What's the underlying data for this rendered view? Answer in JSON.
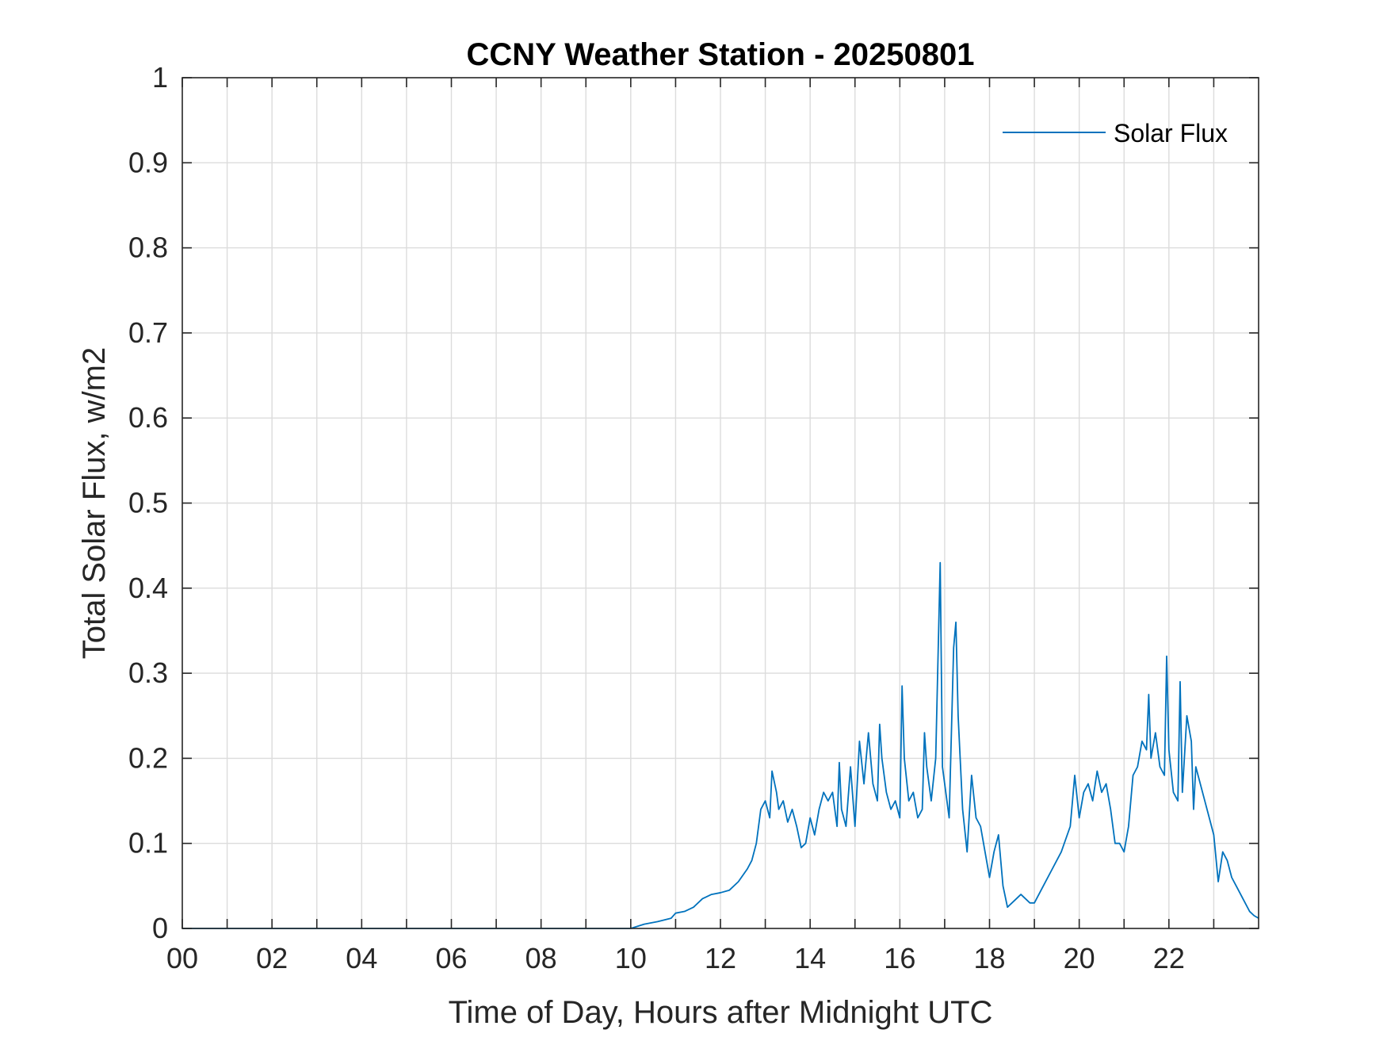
{
  "chart_data": {
    "type": "line",
    "title": "CCNY Weather Station - 20250801",
    "xlabel": "Time of Day, Hours after Midnight UTC",
    "ylabel": "Total Solar Flux, w/m2",
    "xlim": [
      0,
      24
    ],
    "ylim": [
      0,
      1
    ],
    "grid": true,
    "legend_position": "top-right",
    "line_color": "#0072BD",
    "x_ticks": [
      0,
      2,
      4,
      6,
      8,
      10,
      12,
      14,
      16,
      18,
      20,
      22
    ],
    "x_tick_labels": [
      "00",
      "02",
      "04",
      "06",
      "08",
      "10",
      "12",
      "14",
      "16",
      "18",
      "20",
      "22"
    ],
    "x_minor_ticks": [
      1,
      3,
      5,
      7,
      9,
      11,
      13,
      15,
      17,
      19,
      21,
      23
    ],
    "y_ticks": [
      0,
      0.1,
      0.2,
      0.3,
      0.4,
      0.5,
      0.6,
      0.7,
      0.8,
      0.9,
      1
    ],
    "y_tick_labels": [
      "0",
      "0.1",
      "0.2",
      "0.3",
      "0.4",
      "0.5",
      "0.6",
      "0.7",
      "0.8",
      "0.9",
      "1"
    ],
    "series": [
      {
        "name": "Solar Flux",
        "x": [
          0,
          10,
          10.3,
          10.6,
          10.9,
          11.0,
          11.2,
          11.4,
          11.6,
          11.8,
          12.0,
          12.2,
          12.4,
          12.6,
          12.7,
          12.8,
          12.9,
          13.0,
          13.1,
          13.15,
          13.25,
          13.3,
          13.4,
          13.5,
          13.6,
          13.7,
          13.8,
          13.9,
          14.0,
          14.1,
          14.2,
          14.3,
          14.4,
          14.5,
          14.6,
          14.65,
          14.7,
          14.8,
          14.9,
          15.0,
          15.1,
          15.2,
          15.3,
          15.4,
          15.5,
          15.55,
          15.6,
          15.7,
          15.8,
          15.9,
          16.0,
          16.05,
          16.1,
          16.2,
          16.3,
          16.4,
          16.5,
          16.55,
          16.6,
          16.7,
          16.8,
          16.9,
          16.95,
          17.0,
          17.1,
          17.2,
          17.25,
          17.3,
          17.4,
          17.5,
          17.6,
          17.7,
          17.8,
          17.9,
          18.0,
          18.1,
          18.2,
          18.3,
          18.4,
          18.5,
          18.6,
          18.7,
          18.8,
          18.9,
          19.0,
          19.2,
          19.4,
          19.6,
          19.8,
          19.9,
          20.0,
          20.1,
          20.2,
          20.3,
          20.4,
          20.5,
          20.6,
          20.7,
          20.8,
          20.9,
          21.0,
          21.1,
          21.2,
          21.3,
          21.4,
          21.5,
          21.55,
          21.6,
          21.7,
          21.8,
          21.9,
          21.95,
          22.0,
          22.1,
          22.2,
          22.25,
          22.3,
          22.4,
          22.5,
          22.55,
          22.6,
          22.7,
          22.8,
          22.9,
          23.0,
          23.1,
          23.2,
          23.3,
          23.4,
          23.5,
          23.6,
          23.7,
          23.8,
          23.9,
          24.0
        ],
        "values": [
          0,
          0,
          0.005,
          0.008,
          0.012,
          0.018,
          0.02,
          0.025,
          0.035,
          0.04,
          0.042,
          0.045,
          0.055,
          0.07,
          0.08,
          0.1,
          0.14,
          0.15,
          0.13,
          0.185,
          0.16,
          0.14,
          0.15,
          0.125,
          0.14,
          0.12,
          0.095,
          0.1,
          0.13,
          0.11,
          0.14,
          0.16,
          0.15,
          0.16,
          0.12,
          0.195,
          0.14,
          0.12,
          0.19,
          0.12,
          0.22,
          0.17,
          0.23,
          0.17,
          0.15,
          0.24,
          0.2,
          0.16,
          0.14,
          0.15,
          0.13,
          0.285,
          0.2,
          0.15,
          0.16,
          0.13,
          0.14,
          0.23,
          0.19,
          0.15,
          0.2,
          0.43,
          0.19,
          0.17,
          0.13,
          0.33,
          0.36,
          0.25,
          0.14,
          0.09,
          0.18,
          0.13,
          0.12,
          0.09,
          0.06,
          0.09,
          0.11,
          0.05,
          0.025,
          0.03,
          0.035,
          0.04,
          0.035,
          0.03,
          0.03,
          0.05,
          0.07,
          0.09,
          0.12,
          0.18,
          0.13,
          0.16,
          0.17,
          0.15,
          0.185,
          0.16,
          0.17,
          0.14,
          0.1,
          0.1,
          0.09,
          0.12,
          0.18,
          0.19,
          0.22,
          0.21,
          0.275,
          0.2,
          0.23,
          0.19,
          0.18,
          0.32,
          0.21,
          0.16,
          0.15,
          0.29,
          0.16,
          0.25,
          0.22,
          0.14,
          0.19,
          0.17,
          0.15,
          0.13,
          0.11,
          0.055,
          0.09,
          0.08,
          0.06,
          0.05,
          0.04,
          0.03,
          0.02,
          0.015,
          0.012
        ]
      }
    ]
  }
}
